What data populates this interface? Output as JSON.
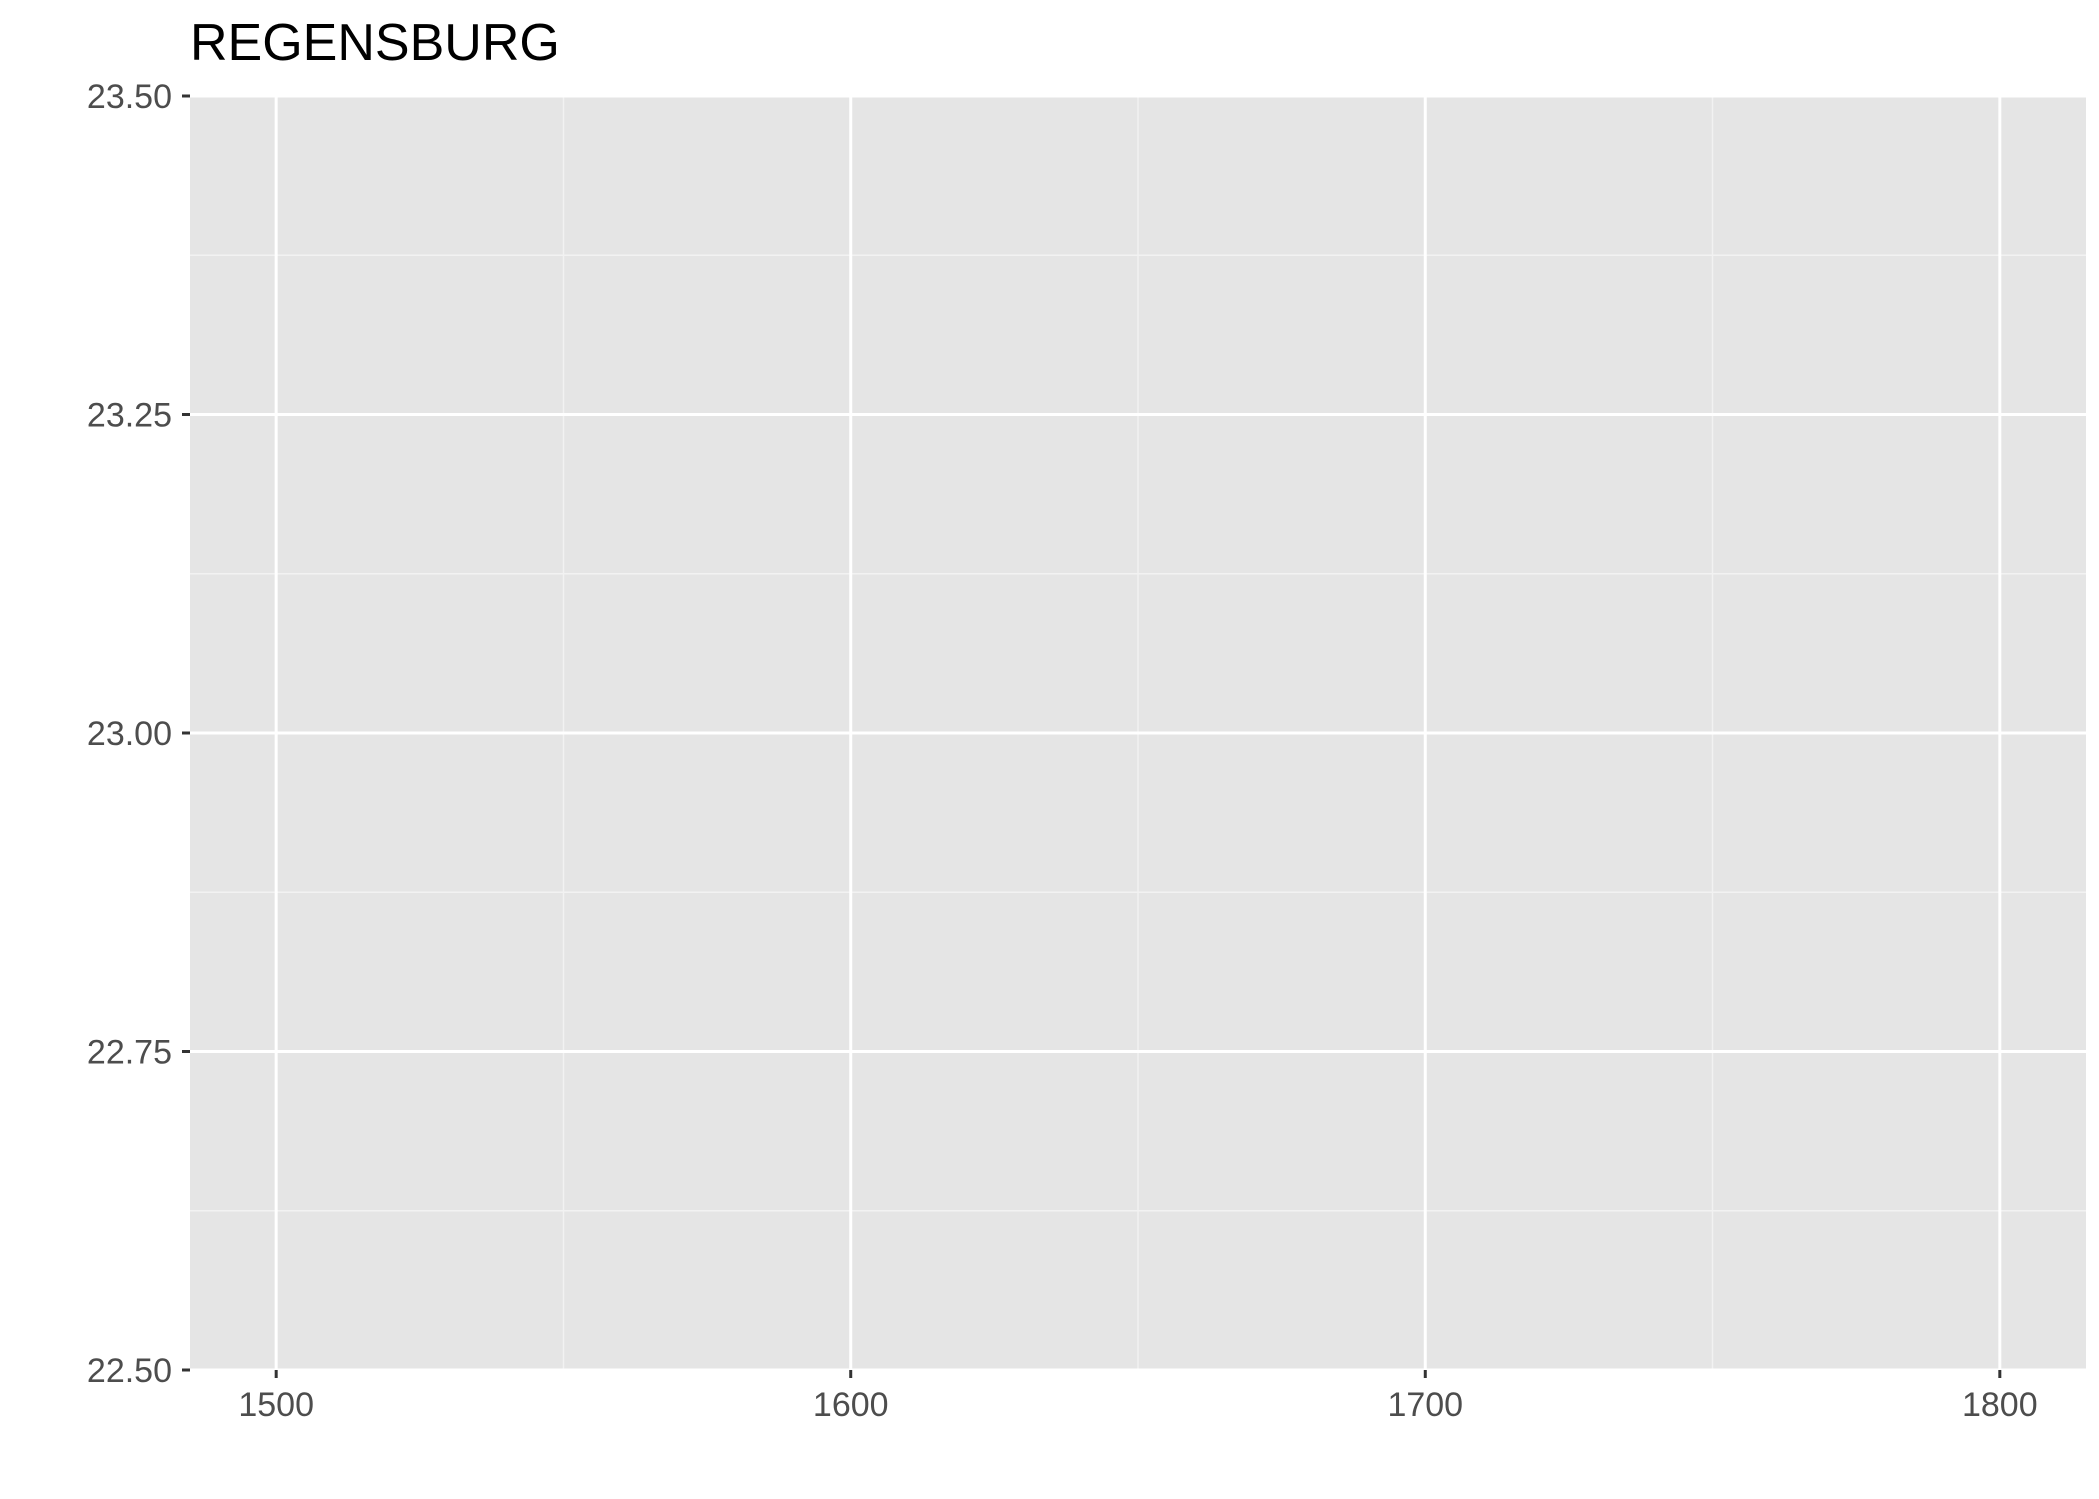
{
  "chart_data": {
    "type": "line",
    "title": "REGENSBURG",
    "xlabel": "",
    "ylabel": "",
    "xlim": [
      1485,
      1815
    ],
    "ylim": [
      22.5,
      23.5
    ],
    "x_ticks": [
      1500,
      1600,
      1700,
      1800
    ],
    "x_tick_labels": [
      "1500",
      "1600",
      "1700",
      "1800"
    ],
    "x_minor_ticks": [
      1550,
      1650,
      1750
    ],
    "y_ticks": [
      22.5,
      22.75,
      23.0,
      23.25,
      23.5
    ],
    "y_tick_labels": [
      "22.50",
      "22.75",
      "23.00",
      "23.25",
      "23.50"
    ],
    "y_minor_ticks": [
      22.625,
      22.875,
      23.125,
      23.375
    ],
    "series": [],
    "grid": true,
    "legend": "none",
    "colors": {
      "panel_background": "#e5e5e5",
      "grid_major": "#ffffff",
      "grid_minor": "#f2f2f2",
      "tick_mark": "#333333",
      "tick_text": "#4d4d4d",
      "title_text": "#000000"
    }
  }
}
